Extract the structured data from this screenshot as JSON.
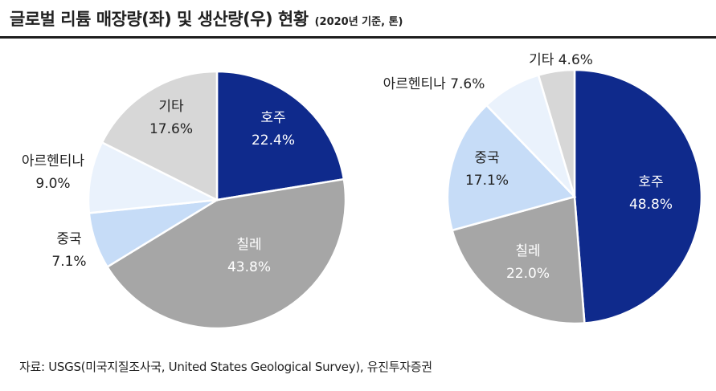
{
  "title": {
    "main": "글로벌 리튬 매장량(좌) 및 생산량(우) 현황",
    "sub": "(2020년 기준, 톤)"
  },
  "source": "자료: USGS(미국지질조사국, United States Geological Survey), 유진투자증권",
  "colors": {
    "호주": "#0f2a8c",
    "칠레": "#a6a6a6",
    "중국": "#c6dcf7",
    "아르헨티나": "#eaf2fc",
    "기타": "#d7d7d7"
  },
  "chart_data": [
    {
      "type": "pie",
      "title": "매장량",
      "start_angle_deg": 0,
      "direction": "clockwise",
      "slices": [
        {
          "label": "호주",
          "value": 22.4,
          "text": "22.4%"
        },
        {
          "label": "칠레",
          "value": 43.8,
          "text": "43.8%"
        },
        {
          "label": "중국",
          "value": 7.1,
          "text": "7.1%"
        },
        {
          "label": "아르헨티나",
          "value": 9.0,
          "text": "9.0%"
        },
        {
          "label": "기타",
          "value": 17.6,
          "text": "17.6%"
        }
      ]
    },
    {
      "type": "pie",
      "title": "생산량",
      "start_angle_deg": 0,
      "direction": "clockwise",
      "slices": [
        {
          "label": "호주",
          "value": 48.8,
          "text": "48.8%"
        },
        {
          "label": "칠레",
          "value": 22.0,
          "text": "22.0%"
        },
        {
          "label": "중국",
          "value": 17.1,
          "text": "17.1%"
        },
        {
          "label": "아르헨티나",
          "value": 7.6,
          "text": "7.6%"
        },
        {
          "label": "기타",
          "value": 4.6,
          "text": "4.6%"
        }
      ]
    }
  ]
}
